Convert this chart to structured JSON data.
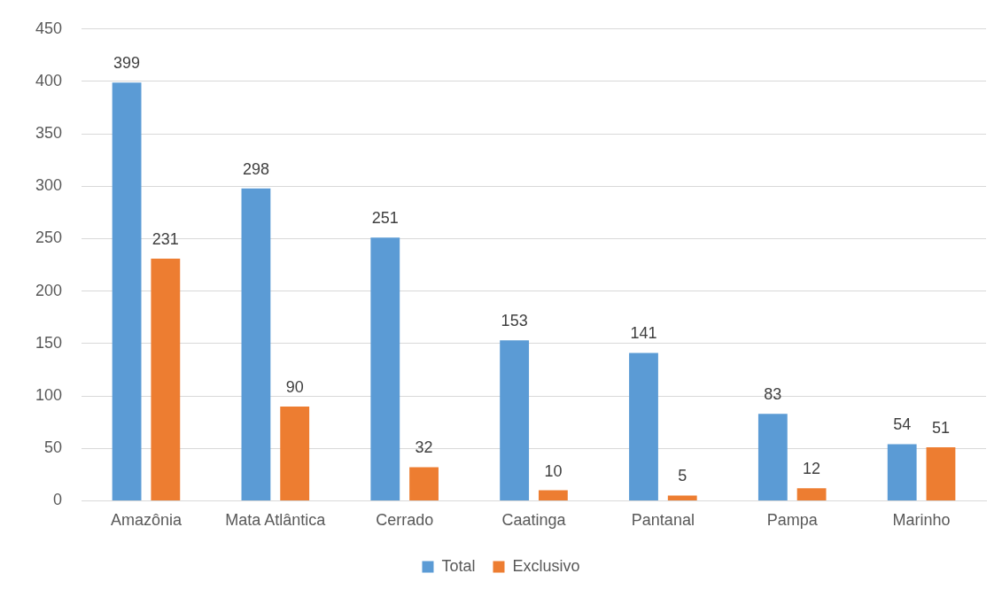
{
  "chart_data": {
    "type": "bar",
    "categories": [
      "Amazônia",
      "Mata Atlântica",
      "Cerrado",
      "Caatinga",
      "Pantanal",
      "Pampa",
      "Marinho"
    ],
    "series": [
      {
        "name": "Total",
        "color": "#5b9bd5",
        "values": [
          399,
          298,
          251,
          153,
          141,
          83,
          54
        ]
      },
      {
        "name": "Exclusivo",
        "color": "#ed7d31",
        "values": [
          231,
          90,
          32,
          10,
          5,
          12,
          51
        ]
      }
    ],
    "ylim": [
      0,
      450
    ],
    "yticks": [
      0,
      50,
      100,
      150,
      200,
      250,
      300,
      350,
      400,
      450
    ],
    "grid": "y",
    "legend": "bottom",
    "data_labels": true
  }
}
